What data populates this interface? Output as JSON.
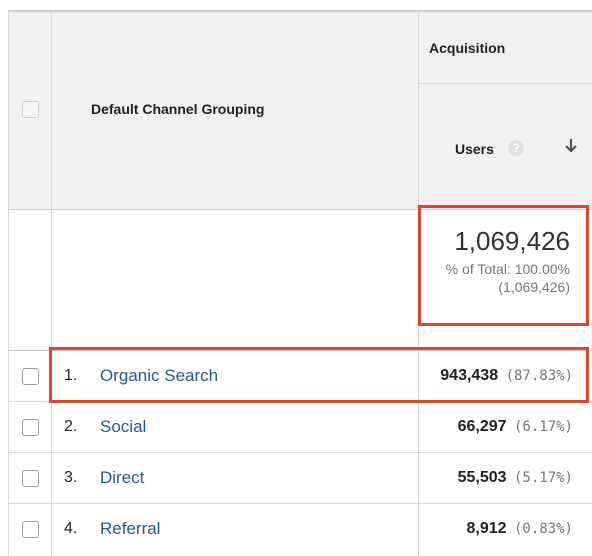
{
  "header": {
    "dimension_label": "Default Channel Grouping",
    "group_label": "Acquisition",
    "metric_label": "Users",
    "help_glyph": "?",
    "sort_icon": "arrow-down-icon"
  },
  "totals": {
    "value": "1,069,426",
    "percent_line": "% of Total: 100.00%",
    "total_line": "(1,069,426)"
  },
  "rows": [
    {
      "rank": "1.",
      "channel": "Organic Search",
      "users": "943,438",
      "percent": "(87.83%)"
    },
    {
      "rank": "2.",
      "channel": "Social",
      "users": "66,297",
      "percent": "(6.17%)"
    },
    {
      "rank": "3.",
      "channel": "Direct",
      "users": "55,503",
      "percent": "(5.17%)"
    },
    {
      "rank": "4.",
      "channel": "Referral",
      "users": "8,912",
      "percent": "(0.83%)"
    }
  ],
  "colors": {
    "highlight": "#e0452a",
    "link": "#1f5aa0",
    "header_bg": "#f1f1f1"
  }
}
